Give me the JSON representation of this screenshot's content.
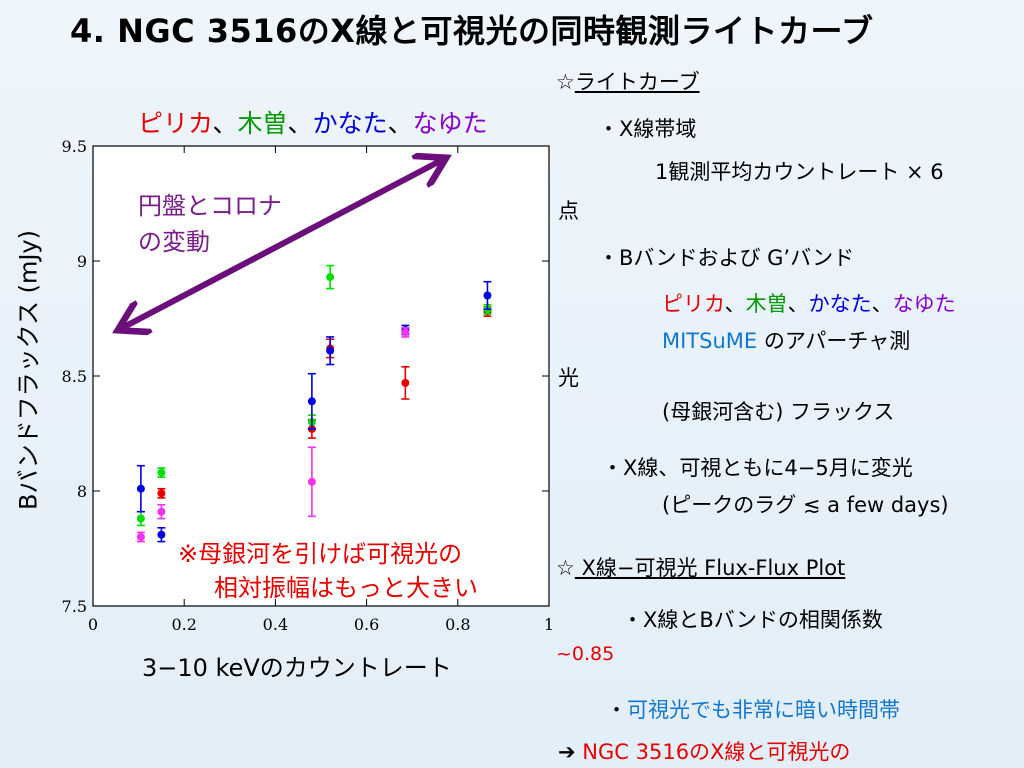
{
  "title": "4. NGC 3516のX線と可視光の同時観測ライトカーブ",
  "legend_top": [
    "ピリカ",
    "、",
    "木曽",
    "、",
    "かなた",
    "、",
    "なゆた"
  ],
  "ylabel": "Bバンドフラックス (mJy)",
  "xlabel": "3−10 keVのカウントレート",
  "annotation_arrow": [
    "円盤とコロナ",
    "の変動"
  ],
  "annotation_note": [
    "※母銀河を引けば可視光の",
    "相対振幅はもっと大きい"
  ],
  "colors": {
    "pirika": "#e60000",
    "kiso": "#00dd00",
    "kanata": "#0000dd",
    "nayuta": "#ee33ee",
    "arrow": "#6b0f7a"
  },
  "chart_data": {
    "type": "scatter",
    "title": "",
    "xlabel": "3−10 keVのカウントレート",
    "ylabel": "Bバンドフラックス (mJy)",
    "xlim": [
      0,
      1
    ],
    "ylim": [
      7.5,
      9.5
    ],
    "xticks": [
      "0",
      "0.2",
      "0.4",
      "0.6",
      "0.8",
      "1"
    ],
    "yticks": [
      "7.5",
      "8",
      "8.5",
      "9",
      "9.5"
    ],
    "series": [
      {
        "name": "ピリカ",
        "color": "#e60000",
        "points": [
          {
            "x": 0.15,
            "y": 7.99,
            "err": 0.02
          },
          {
            "x": 0.48,
            "y": 8.27,
            "err": 0.04
          },
          {
            "x": 0.52,
            "y": 8.62,
            "err": 0.04
          },
          {
            "x": 0.685,
            "y": 8.47,
            "err": 0.07
          },
          {
            "x": 0.865,
            "y": 8.78,
            "err": 0.02
          }
        ]
      },
      {
        "name": "木曽",
        "color": "#00dd00",
        "points": [
          {
            "x": 0.105,
            "y": 7.88,
            "err": 0.03
          },
          {
            "x": 0.15,
            "y": 8.08,
            "err": 0.02
          },
          {
            "x": 0.48,
            "y": 8.3,
            "err": 0.03
          },
          {
            "x": 0.52,
            "y": 8.93,
            "err": 0.05
          },
          {
            "x": 0.865,
            "y": 8.79,
            "err": 0.02
          }
        ]
      },
      {
        "name": "かなた",
        "color": "#0000dd",
        "points": [
          {
            "x": 0.105,
            "y": 8.01,
            "err": 0.1
          },
          {
            "x": 0.15,
            "y": 7.81,
            "err": 0.03
          },
          {
            "x": 0.48,
            "y": 8.39,
            "err": 0.12
          },
          {
            "x": 0.52,
            "y": 8.61,
            "err": 0.06
          },
          {
            "x": 0.685,
            "y": 8.7,
            "err": 0.02
          },
          {
            "x": 0.865,
            "y": 8.85,
            "err": 0.06
          }
        ]
      },
      {
        "name": "なゆた",
        "color": "#ee33ee",
        "points": [
          {
            "x": 0.105,
            "y": 7.8,
            "err": 0.02
          },
          {
            "x": 0.15,
            "y": 7.91,
            "err": 0.03
          },
          {
            "x": 0.48,
            "y": 8.04,
            "err": 0.15
          },
          {
            "x": 0.685,
            "y": 8.69,
            "err": 0.02
          }
        ]
      }
    ]
  },
  "right": {
    "lc_star": "☆",
    "lc_heading": "ライトカーブ",
    "xray_band": "・X線帯域",
    "avg1": "1観測平均カウントレート × 6",
    "avg2": "点",
    "bband": "・Bバンドおよび G’バンド",
    "obs_names": [
      "ピリカ",
      "、",
      "木曽",
      "、",
      "かなた",
      "、",
      "なゆた"
    ],
    "mitsume": "MITSuME",
    "aperture": " のアパーチャ測",
    "hikari": "光",
    "host": "(母銀河含む) フラックス",
    "vary1": "・X線、可視ともに4−5月に変光",
    "vary2": "(ピークのラグ ≲ a few days)",
    "ff_star": "☆",
    "ff_heading": " X線−可視光 Flux-Flux Plot",
    "corr": "・X線とBバンドの相関係数",
    "corr_val": "~0.85",
    "dark_dot": "・",
    "dark": "可視光でも非常に暗い時間帯",
    "concl_arrow": "➔",
    "concl": " NGC 3516のX線と可視光の"
  }
}
